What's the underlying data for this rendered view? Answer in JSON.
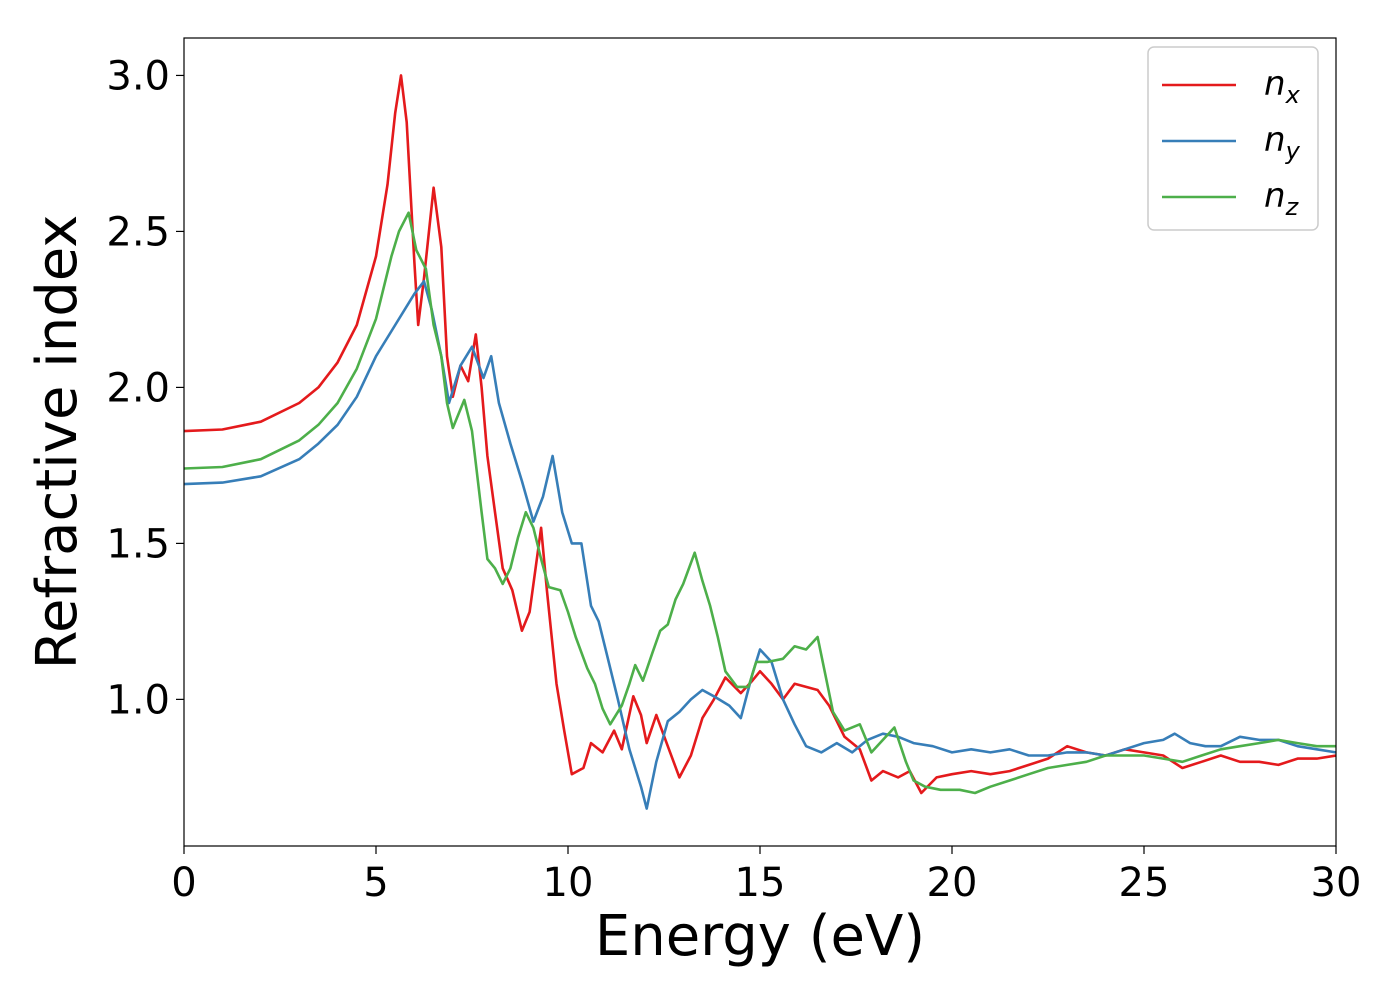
{
  "chart_data": {
    "type": "line",
    "title": "",
    "xlabel": "Energy (eV)",
    "ylabel": "Refractive index",
    "xlim": [
      0,
      30
    ],
    "ylim": [
      0.53,
      3.12
    ],
    "xticks": [
      0,
      5,
      10,
      15,
      20,
      25,
      30
    ],
    "xtick_labels": [
      "0",
      "5",
      "10",
      "15",
      "20",
      "25",
      "30"
    ],
    "yticks": [
      1.0,
      1.5,
      2.0,
      2.5,
      3.0
    ],
    "ytick_labels": [
      "1.0",
      "1.5",
      "2.0",
      "2.5",
      "3.0"
    ],
    "grid": false,
    "legend_position": "top-right",
    "series": [
      {
        "name": "n",
        "subscript": "x",
        "color": "#e41a1c",
        "points": [
          [
            0,
            1.86
          ],
          [
            1,
            1.865
          ],
          [
            2,
            1.89
          ],
          [
            3,
            1.95
          ],
          [
            3.5,
            2.0
          ],
          [
            4,
            2.08
          ],
          [
            4.5,
            2.2
          ],
          [
            5,
            2.42
          ],
          [
            5.3,
            2.65
          ],
          [
            5.5,
            2.88
          ],
          [
            5.65,
            3.0
          ],
          [
            5.8,
            2.85
          ],
          [
            6.0,
            2.4
          ],
          [
            6.1,
            2.2
          ],
          [
            6.25,
            2.35
          ],
          [
            6.5,
            2.64
          ],
          [
            6.7,
            2.45
          ],
          [
            6.85,
            2.1
          ],
          [
            7.0,
            1.97
          ],
          [
            7.2,
            2.07
          ],
          [
            7.4,
            2.02
          ],
          [
            7.6,
            2.17
          ],
          [
            7.75,
            2.0
          ],
          [
            7.9,
            1.78
          ],
          [
            8.1,
            1.6
          ],
          [
            8.3,
            1.42
          ],
          [
            8.55,
            1.35
          ],
          [
            8.8,
            1.22
          ],
          [
            9.0,
            1.28
          ],
          [
            9.3,
            1.55
          ],
          [
            9.45,
            1.35
          ],
          [
            9.7,
            1.05
          ],
          [
            9.9,
            0.9
          ],
          [
            10.1,
            0.76
          ],
          [
            10.4,
            0.78
          ],
          [
            10.6,
            0.86
          ],
          [
            10.9,
            0.83
          ],
          [
            11.2,
            0.9
          ],
          [
            11.4,
            0.84
          ],
          [
            11.7,
            1.01
          ],
          [
            11.9,
            0.95
          ],
          [
            12.05,
            0.86
          ],
          [
            12.3,
            0.95
          ],
          [
            12.6,
            0.85
          ],
          [
            12.9,
            0.75
          ],
          [
            13.2,
            0.82
          ],
          [
            13.5,
            0.94
          ],
          [
            13.8,
            1.0
          ],
          [
            14.1,
            1.07
          ],
          [
            14.5,
            1.02
          ],
          [
            14.8,
            1.06
          ],
          [
            15.0,
            1.09
          ],
          [
            15.3,
            1.05
          ],
          [
            15.6,
            1.0
          ],
          [
            15.9,
            1.05
          ],
          [
            16.2,
            1.04
          ],
          [
            16.5,
            1.03
          ],
          [
            16.8,
            0.98
          ],
          [
            17.2,
            0.88
          ],
          [
            17.6,
            0.84
          ],
          [
            17.9,
            0.74
          ],
          [
            18.2,
            0.77
          ],
          [
            18.6,
            0.75
          ],
          [
            18.9,
            0.77
          ],
          [
            19.2,
            0.7
          ],
          [
            19.6,
            0.75
          ],
          [
            20.0,
            0.76
          ],
          [
            20.5,
            0.77
          ],
          [
            21.0,
            0.76
          ],
          [
            21.5,
            0.77
          ],
          [
            22.0,
            0.79
          ],
          [
            22.5,
            0.81
          ],
          [
            23.0,
            0.85
          ],
          [
            23.5,
            0.83
          ],
          [
            24.0,
            0.82
          ],
          [
            24.5,
            0.84
          ],
          [
            25.0,
            0.83
          ],
          [
            25.5,
            0.82
          ],
          [
            26.0,
            0.78
          ],
          [
            26.5,
            0.8
          ],
          [
            27.0,
            0.82
          ],
          [
            27.5,
            0.8
          ],
          [
            28.0,
            0.8
          ],
          [
            28.5,
            0.79
          ],
          [
            29.0,
            0.81
          ],
          [
            29.5,
            0.81
          ],
          [
            30.0,
            0.82
          ]
        ]
      },
      {
        "name": "n",
        "subscript": "y",
        "color": "#377eb8",
        "points": [
          [
            0,
            1.69
          ],
          [
            1,
            1.695
          ],
          [
            2,
            1.715
          ],
          [
            3,
            1.77
          ],
          [
            3.5,
            1.82
          ],
          [
            4,
            1.88
          ],
          [
            4.5,
            1.97
          ],
          [
            5,
            2.1
          ],
          [
            5.5,
            2.2
          ],
          [
            6.0,
            2.3
          ],
          [
            6.25,
            2.34
          ],
          [
            6.45,
            2.25
          ],
          [
            6.7,
            2.1
          ],
          [
            6.9,
            1.95
          ],
          [
            7.2,
            2.07
          ],
          [
            7.5,
            2.13
          ],
          [
            7.8,
            2.03
          ],
          [
            8.0,
            2.1
          ],
          [
            8.2,
            1.95
          ],
          [
            8.5,
            1.82
          ],
          [
            8.8,
            1.7
          ],
          [
            9.1,
            1.57
          ],
          [
            9.35,
            1.65
          ],
          [
            9.6,
            1.78
          ],
          [
            9.85,
            1.6
          ],
          [
            10.1,
            1.5
          ],
          [
            10.35,
            1.5
          ],
          [
            10.6,
            1.3
          ],
          [
            10.8,
            1.25
          ],
          [
            11.0,
            1.15
          ],
          [
            11.3,
            1.0
          ],
          [
            11.6,
            0.84
          ],
          [
            11.9,
            0.72
          ],
          [
            12.05,
            0.65
          ],
          [
            12.3,
            0.8
          ],
          [
            12.6,
            0.93
          ],
          [
            12.9,
            0.96
          ],
          [
            13.2,
            1.0
          ],
          [
            13.5,
            1.03
          ],
          [
            13.8,
            1.01
          ],
          [
            14.2,
            0.98
          ],
          [
            14.5,
            0.94
          ],
          [
            14.8,
            1.08
          ],
          [
            15.0,
            1.16
          ],
          [
            15.3,
            1.12
          ],
          [
            15.6,
            1.0
          ],
          [
            15.9,
            0.92
          ],
          [
            16.2,
            0.85
          ],
          [
            16.6,
            0.83
          ],
          [
            17.0,
            0.86
          ],
          [
            17.4,
            0.83
          ],
          [
            17.8,
            0.87
          ],
          [
            18.2,
            0.89
          ],
          [
            18.6,
            0.88
          ],
          [
            19.0,
            0.86
          ],
          [
            19.5,
            0.85
          ],
          [
            20.0,
            0.83
          ],
          [
            20.5,
            0.84
          ],
          [
            21.0,
            0.83
          ],
          [
            21.5,
            0.84
          ],
          [
            22.0,
            0.82
          ],
          [
            22.5,
            0.82
          ],
          [
            23.0,
            0.83
          ],
          [
            23.5,
            0.83
          ],
          [
            24.0,
            0.82
          ],
          [
            24.5,
            0.84
          ],
          [
            25.0,
            0.86
          ],
          [
            25.5,
            0.87
          ],
          [
            25.8,
            0.89
          ],
          [
            26.2,
            0.86
          ],
          [
            26.6,
            0.85
          ],
          [
            27.0,
            0.85
          ],
          [
            27.5,
            0.88
          ],
          [
            28.0,
            0.87
          ],
          [
            28.5,
            0.87
          ],
          [
            29.0,
            0.85
          ],
          [
            29.5,
            0.84
          ],
          [
            30.0,
            0.83
          ]
        ]
      },
      {
        "name": "n",
        "subscript": "z",
        "color": "#4daf4a",
        "points": [
          [
            0,
            1.74
          ],
          [
            1,
            1.745
          ],
          [
            2,
            1.77
          ],
          [
            3,
            1.83
          ],
          [
            3.5,
            1.88
          ],
          [
            4,
            1.95
          ],
          [
            4.5,
            2.06
          ],
          [
            5,
            2.22
          ],
          [
            5.4,
            2.42
          ],
          [
            5.6,
            2.5
          ],
          [
            5.85,
            2.56
          ],
          [
            6.05,
            2.44
          ],
          [
            6.3,
            2.38
          ],
          [
            6.5,
            2.2
          ],
          [
            6.7,
            2.1
          ],
          [
            6.85,
            1.95
          ],
          [
            7.0,
            1.87
          ],
          [
            7.3,
            1.96
          ],
          [
            7.5,
            1.86
          ],
          [
            7.75,
            1.6
          ],
          [
            7.9,
            1.45
          ],
          [
            8.1,
            1.42
          ],
          [
            8.3,
            1.37
          ],
          [
            8.5,
            1.42
          ],
          [
            8.7,
            1.52
          ],
          [
            8.9,
            1.6
          ],
          [
            9.1,
            1.55
          ],
          [
            9.3,
            1.45
          ],
          [
            9.5,
            1.36
          ],
          [
            9.8,
            1.35
          ],
          [
            10.0,
            1.28
          ],
          [
            10.2,
            1.2
          ],
          [
            10.5,
            1.1
          ],
          [
            10.7,
            1.05
          ],
          [
            10.9,
            0.97
          ],
          [
            11.1,
            0.92
          ],
          [
            11.4,
            0.98
          ],
          [
            11.6,
            1.05
          ],
          [
            11.75,
            1.11
          ],
          [
            11.95,
            1.06
          ],
          [
            12.2,
            1.15
          ],
          [
            12.4,
            1.22
          ],
          [
            12.6,
            1.24
          ],
          [
            12.8,
            1.32
          ],
          [
            13.0,
            1.37
          ],
          [
            13.3,
            1.47
          ],
          [
            13.5,
            1.38
          ],
          [
            13.7,
            1.3
          ],
          [
            13.9,
            1.2
          ],
          [
            14.1,
            1.09
          ],
          [
            14.4,
            1.04
          ],
          [
            14.7,
            1.04
          ],
          [
            14.9,
            1.12
          ],
          [
            15.2,
            1.12
          ],
          [
            15.6,
            1.13
          ],
          [
            15.9,
            1.17
          ],
          [
            16.2,
            1.16
          ],
          [
            16.5,
            1.2
          ],
          [
            16.7,
            1.08
          ],
          [
            16.9,
            0.96
          ],
          [
            17.2,
            0.9
          ],
          [
            17.6,
            0.92
          ],
          [
            17.9,
            0.83
          ],
          [
            18.2,
            0.87
          ],
          [
            18.5,
            0.91
          ],
          [
            18.8,
            0.8
          ],
          [
            19.0,
            0.74
          ],
          [
            19.3,
            0.72
          ],
          [
            19.7,
            0.71
          ],
          [
            20.2,
            0.71
          ],
          [
            20.6,
            0.7
          ],
          [
            21.0,
            0.72
          ],
          [
            21.5,
            0.74
          ],
          [
            22.0,
            0.76
          ],
          [
            22.5,
            0.78
          ],
          [
            23.0,
            0.79
          ],
          [
            23.5,
            0.8
          ],
          [
            24.0,
            0.82
          ],
          [
            24.5,
            0.82
          ],
          [
            25.0,
            0.82
          ],
          [
            25.5,
            0.81
          ],
          [
            26.0,
            0.8
          ],
          [
            26.5,
            0.82
          ],
          [
            27.0,
            0.84
          ],
          [
            27.5,
            0.85
          ],
          [
            28.0,
            0.86
          ],
          [
            28.5,
            0.87
          ],
          [
            29.0,
            0.86
          ],
          [
            29.5,
            0.85
          ],
          [
            30.0,
            0.85
          ]
        ]
      }
    ]
  }
}
